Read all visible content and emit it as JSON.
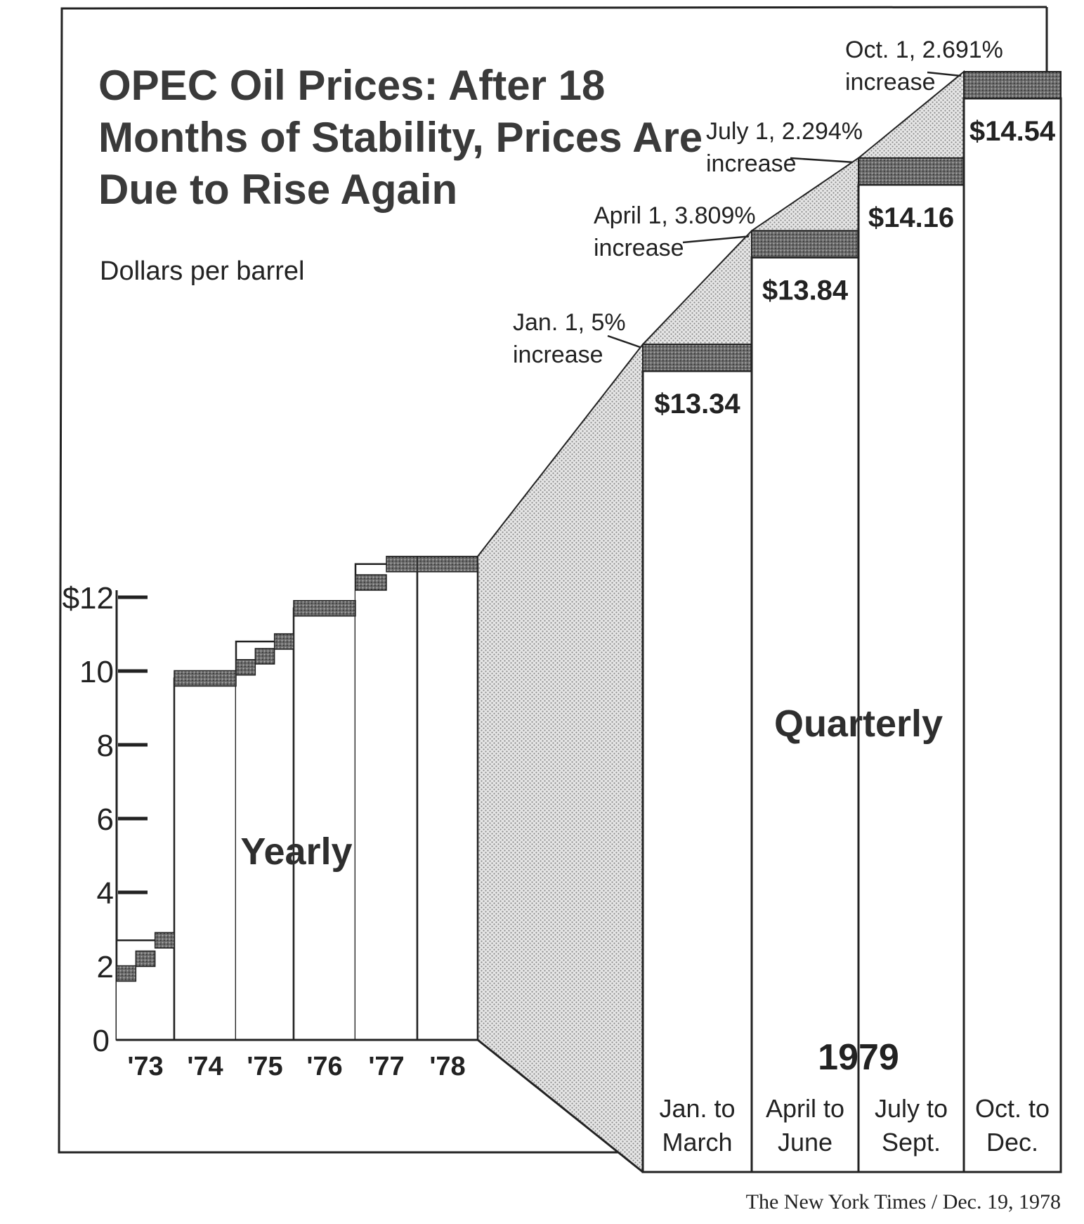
{
  "chart_data": {
    "type": "bar",
    "title": "OPEC Oil Prices: After 18 Months of Stability, Prices Are Due to Rise Again",
    "title_lines": [
      "OPEC Oil Prices: After 18",
      "Months of Stability, Prices Are",
      "Due to Rise Again"
    ],
    "ylabel": "Dollars per barrel",
    "ylim": [
      0,
      12
    ],
    "yticks": [
      0,
      2,
      4,
      6,
      8,
      10,
      12
    ],
    "ytick_labels": [
      "0",
      "2",
      "4",
      "6",
      "8",
      "10",
      "$12"
    ],
    "yearly": {
      "label": "Yearly",
      "categories": [
        "'73",
        "'74",
        "'75",
        "'76",
        "'77",
        "'78"
      ],
      "steps": [
        {
          "year": 1973,
          "segments": [
            1.8,
            2.2,
            2.7
          ]
        },
        {
          "year": 1974,
          "segments": [
            9.8
          ]
        },
        {
          "year": 1975,
          "segments": [
            10.1,
            10.4,
            10.8
          ]
        },
        {
          "year": 1976,
          "segments": [
            11.7
          ]
        },
        {
          "year": 1977,
          "segments": [
            12.4,
            12.9
          ]
        },
        {
          "year": 1978,
          "segments": [
            12.9
          ]
        }
      ]
    },
    "quarterly": {
      "label": "Quarterly",
      "year_label": "1979",
      "categories": [
        "Jan. to March",
        "April to June",
        "July to Sept.",
        "Oct. to Dec."
      ],
      "category_lines": [
        [
          "Jan. to",
          "March"
        ],
        [
          "April to",
          "June"
        ],
        [
          "July to",
          "Sept."
        ],
        [
          "Oct. to",
          "Dec."
        ]
      ],
      "values": [
        13.34,
        13.84,
        14.16,
        14.54
      ],
      "value_labels": [
        "$13.34",
        "$13.84",
        "$14.16",
        "$14.54"
      ],
      "annotations": [
        {
          "lines": [
            "Jan. 1, 5%",
            "increase"
          ]
        },
        {
          "lines": [
            "April 1, 3.809%",
            "increase"
          ]
        },
        {
          "lines": [
            "July 1, 2.294%",
            "increase"
          ]
        },
        {
          "lines": [
            "Oct. 1, 2.691%",
            "increase"
          ]
        }
      ]
    },
    "credit": "The New York Times / Dec. 19, 1978",
    "grid": false,
    "legend": "none"
  }
}
